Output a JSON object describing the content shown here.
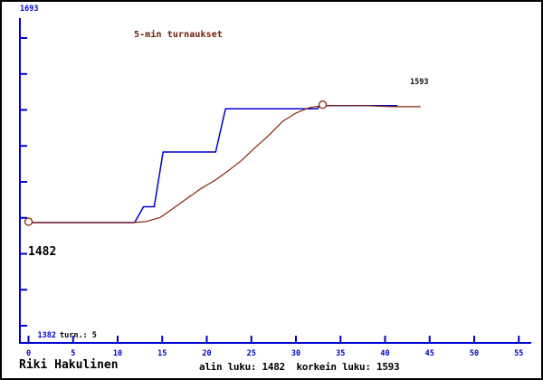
{
  "chart_data": {
    "type": "line",
    "title": "5-min turnaukset",
    "xlabel": "",
    "ylabel": "",
    "x_ticks": [
      "0",
      "5",
      "10",
      "15",
      "20",
      "25",
      "30",
      "35",
      "40",
      "45",
      "50",
      "55"
    ],
    "xlim": [
      0,
      55
    ],
    "ylim": [
      1382,
      1693
    ],
    "grid": false,
    "legend": "none",
    "annotations": {
      "y_max_label": "1693",
      "start_value_label": "1482",
      "y_min_label": "1382",
      "tournament_count_label": "turn.: 5",
      "final_value_label": "1593"
    },
    "series": [
      {
        "name": "tournament-rating-steps",
        "color": "#0000d0",
        "points": [
          [
            0,
            1482
          ],
          [
            11.9,
            1482
          ],
          [
            12.9,
            1497
          ],
          [
            14.1,
            1497
          ],
          [
            15.1,
            1549
          ],
          [
            21.0,
            1549
          ],
          [
            22.1,
            1590
          ],
          [
            32.4,
            1590
          ],
          [
            32.7,
            1593
          ],
          [
            41.4,
            1593
          ]
        ]
      },
      {
        "name": "smoothed-rating",
        "color": "#8b2708",
        "points": [
          [
            0,
            1482
          ],
          [
            11.7,
            1482
          ],
          [
            13.2,
            1483
          ],
          [
            14.8,
            1487
          ],
          [
            16.3,
            1496
          ],
          [
            17.8,
            1505
          ],
          [
            19.3,
            1514
          ],
          [
            20.9,
            1522
          ],
          [
            22.4,
            1531
          ],
          [
            23.9,
            1541
          ],
          [
            25.4,
            1553
          ],
          [
            27.0,
            1565
          ],
          [
            28.5,
            1578
          ],
          [
            30.0,
            1586
          ],
          [
            31.5,
            1591
          ],
          [
            33.0,
            1593
          ],
          [
            35.1,
            1593
          ],
          [
            37.6,
            1593
          ],
          [
            40.7,
            1592
          ],
          [
            44.0,
            1592
          ]
        ]
      }
    ],
    "markers": [
      {
        "name": "first-tournament",
        "x": 0,
        "y": 1482
      },
      {
        "name": "latest-tournament",
        "x": 33,
        "y": 1593
      }
    ]
  },
  "colors": {
    "axis_blue": "#0000d0",
    "step_line": "#0000d0",
    "smooth_line": "#8b2708",
    "title_text": "#6e1d04"
  },
  "status_bar": {
    "player": "Riki Hakulinen",
    "summary": "alin luku: 1482  korkein luku: 1593"
  }
}
